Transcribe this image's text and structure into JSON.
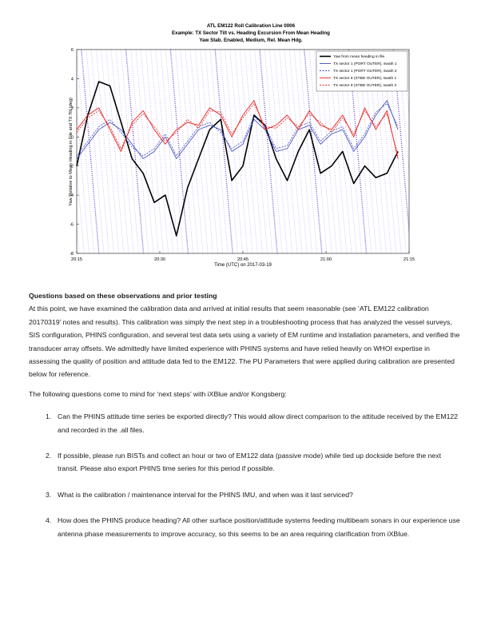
{
  "chart_data": {
    "type": "line",
    "title": "ATL EM122 Roll Calibration Line 0006",
    "subtitle": "Example: TX Sector Tilt vs. Heading Excursion From Mean Heading",
    "subtitle2": "Yaw Stab. Enabled, Medium, Rel. Mean Hdg.",
    "xlabel": "Time (UTC) on 2017-03-19",
    "ylabel": "Yaw Relative to Mean Heading in File and TX Tilt (deg)",
    "x_ticks": [
      "20:15",
      "20:30",
      "20:45",
      "21:00",
      "21:15"
    ],
    "y_ticks": [
      -8,
      -6,
      -4,
      -2,
      0,
      2,
      4,
      6
    ],
    "xlim": [
      "20:15",
      "21:15"
    ],
    "ylim": [
      -8,
      6
    ],
    "grid": false,
    "legend_position": "top-right",
    "legend": [
      {
        "label": "Yaw from mean heading in file",
        "color": "#000000",
        "style": "solid"
      },
      {
        "label": "TX sector 1 (PORT OUTER), swath 1",
        "color": "#3b4cc0",
        "style": "solid"
      },
      {
        "label": "TX sector 1 (PORT OUTER), swath 2",
        "color": "#3b4cc0",
        "style": "dashed"
      },
      {
        "label": "TX sector 8 (STBD OUTER), swath 1",
        "color": "#e8221d",
        "style": "solid"
      },
      {
        "label": "TX sector 8 (STBD OUTER), swath 2",
        "color": "#e8221d",
        "style": "dashed"
      }
    ],
    "series": [
      {
        "name": "Yaw from mean heading in file",
        "x": [
          "20:15",
          "20:17",
          "20:19",
          "20:21",
          "20:23",
          "20:25",
          "20:27",
          "20:29",
          "20:31",
          "20:33",
          "20:35",
          "20:37",
          "20:39",
          "20:41",
          "20:43",
          "20:45",
          "20:47",
          "20:49",
          "20:51",
          "20:53",
          "20:55",
          "20:57",
          "20:59",
          "21:01",
          "21:03",
          "21:05",
          "21:07",
          "21:09",
          "21:11",
          "21:13"
        ],
        "values": [
          -2.0,
          1.5,
          3.8,
          3.5,
          1.0,
          -1.5,
          -2.5,
          -4.5,
          -4.0,
          -6.8,
          -3.5,
          -1.5,
          0.5,
          1.2,
          -3.0,
          -2.0,
          1.5,
          0.8,
          -1.5,
          -3.0,
          -1.0,
          0.5,
          -2.5,
          -2.0,
          -1.0,
          -3.2,
          -2.0,
          -2.8,
          -2.5,
          -1.0
        ]
      },
      {
        "name": "TX sector 1 (PORT OUTER), swath 1",
        "x": [
          "20:15",
          "20:17",
          "20:19",
          "20:21",
          "20:23",
          "20:25",
          "20:27",
          "20:29",
          "20:31",
          "20:33",
          "20:35",
          "20:37",
          "20:39",
          "20:41",
          "20:43",
          "20:45",
          "20:47",
          "20:49",
          "20:51",
          "20:53",
          "20:55",
          "20:57",
          "20:59",
          "21:01",
          "21:03",
          "21:05",
          "21:07",
          "21:09",
          "21:11",
          "21:13"
        ],
        "values": [
          -1.5,
          -0.5,
          0.5,
          1.0,
          0.5,
          -0.5,
          -1.5,
          -1.0,
          0.0,
          -1.5,
          -0.5,
          0.5,
          0.8,
          0.5,
          -1.0,
          -0.5,
          1.2,
          0.5,
          -1.0,
          -0.8,
          0.5,
          0.8,
          -0.5,
          0.2,
          0.5,
          -1.0,
          0.0,
          1.5,
          2.5,
          0.5
        ]
      },
      {
        "name": "TX sector 1 (PORT OUTER), swath 2",
        "x": [
          "20:15",
          "20:17",
          "20:19",
          "20:21",
          "20:23",
          "20:25",
          "20:27",
          "20:29",
          "20:31",
          "20:33",
          "20:35",
          "20:37",
          "20:39",
          "20:41",
          "20:43",
          "20:45",
          "20:47",
          "20:49",
          "20:51",
          "20:53",
          "20:55",
          "20:57",
          "20:59",
          "21:01",
          "21:03",
          "21:05",
          "21:07",
          "21:09",
          "21:11",
          "21:13"
        ],
        "values": [
          -1.3,
          -0.3,
          0.7,
          1.2,
          0.3,
          -0.7,
          -1.3,
          -0.8,
          0.2,
          -1.3,
          -0.3,
          0.7,
          1.0,
          0.3,
          -0.8,
          -0.3,
          1.4,
          0.7,
          -0.8,
          -0.6,
          0.7,
          1.0,
          -0.3,
          0.4,
          0.7,
          -0.8,
          0.2,
          1.7,
          2.3,
          0.7
        ]
      },
      {
        "name": "TX sector 8 (STBD OUTER), swath 1",
        "x": [
          "20:15",
          "20:17",
          "20:19",
          "20:21",
          "20:23",
          "20:25",
          "20:27",
          "20:29",
          "20:31",
          "20:33",
          "20:35",
          "20:37",
          "20:39",
          "20:41",
          "20:43",
          "20:45",
          "20:47",
          "20:49",
          "20:51",
          "20:53",
          "20:55",
          "20:57",
          "20:59",
          "21:01",
          "21:03",
          "21:05",
          "21:07",
          "21:09",
          "21:11",
          "21:13"
        ],
        "values": [
          0.5,
          1.5,
          2.0,
          0.5,
          -1.0,
          1.0,
          1.8,
          0.5,
          -0.5,
          0.5,
          1.0,
          0.8,
          2.0,
          1.5,
          0.0,
          1.5,
          2.5,
          0.5,
          0.8,
          1.5,
          0.5,
          1.8,
          0.8,
          0.5,
          1.5,
          0.0,
          2.0,
          0.5,
          1.8,
          -1.5
        ]
      },
      {
        "name": "TX sector 8 (STBD OUTER), swath 2",
        "x": [
          "20:15",
          "20:17",
          "20:19",
          "20:21",
          "20:23",
          "20:25",
          "20:27",
          "20:29",
          "20:31",
          "20:33",
          "20:35",
          "20:37",
          "20:39",
          "20:41",
          "20:43",
          "20:45",
          "20:47",
          "20:49",
          "20:51",
          "20:53",
          "20:55",
          "20:57",
          "20:59",
          "21:01",
          "21:03",
          "21:05",
          "21:07",
          "21:09",
          "21:11",
          "21:13"
        ],
        "values": [
          0.3,
          1.3,
          1.8,
          0.7,
          -0.8,
          0.8,
          1.6,
          0.7,
          -0.3,
          0.3,
          1.2,
          0.6,
          1.8,
          1.7,
          0.2,
          1.3,
          2.3,
          0.7,
          0.6,
          1.3,
          0.7,
          1.6,
          1.0,
          0.3,
          1.3,
          0.2,
          1.8,
          0.7,
          1.6,
          -1.3
        ]
      }
    ]
  },
  "document": {
    "heading": "Questions based on these observations and prior testing",
    "paragraph1": "At this point, we have examined the calibration data and arrived at initial results that seem reasonable (see ‘ATL EM122 calibration 20170319’ notes and results).  This calibration was simply the next step in a troubleshooting process that has analyzed the vessel surveys, SIS configuration, PHINS configuration, and several test data sets using a variety of EM runtime and installation parameters, and verified the transducer array offsets.  We admittedly have limited experience with PHINS systems and have relied heavily on WHOI expertise in assessing the quality of position and attitude data fed to the EM122.  The PU Parameters that were applied during calibration are presented below for reference.",
    "paragraph2": "The following questions come to mind for ‘next steps’ with iXBlue and/or Kongsberg:",
    "questions": [
      {
        "num": "1.",
        "text": "Can the PHINS attitude time series be exported directly?  This would allow direct comparison to the attitude received by the EM122 and recorded in the .all files."
      },
      {
        "num": "2.",
        "text": "If possible, please run BISTs and collect an hour or two of EM122 data (passive mode) while tied up dockside before the next transit.  Please also export PHINS time series for this period if possible."
      },
      {
        "num": "3.",
        "text": "What is the calibration / maintenance interval for the PHINS IMU, and when was it last serviced?"
      },
      {
        "num": "4.",
        "text": "How does the PHINS produce heading?  All other surface position/attitude systems feeding multibeam sonars in our experience use antenna phase measurements to improve accuracy, so this seems to be an area requiring clarification from iXBlue."
      }
    ]
  }
}
